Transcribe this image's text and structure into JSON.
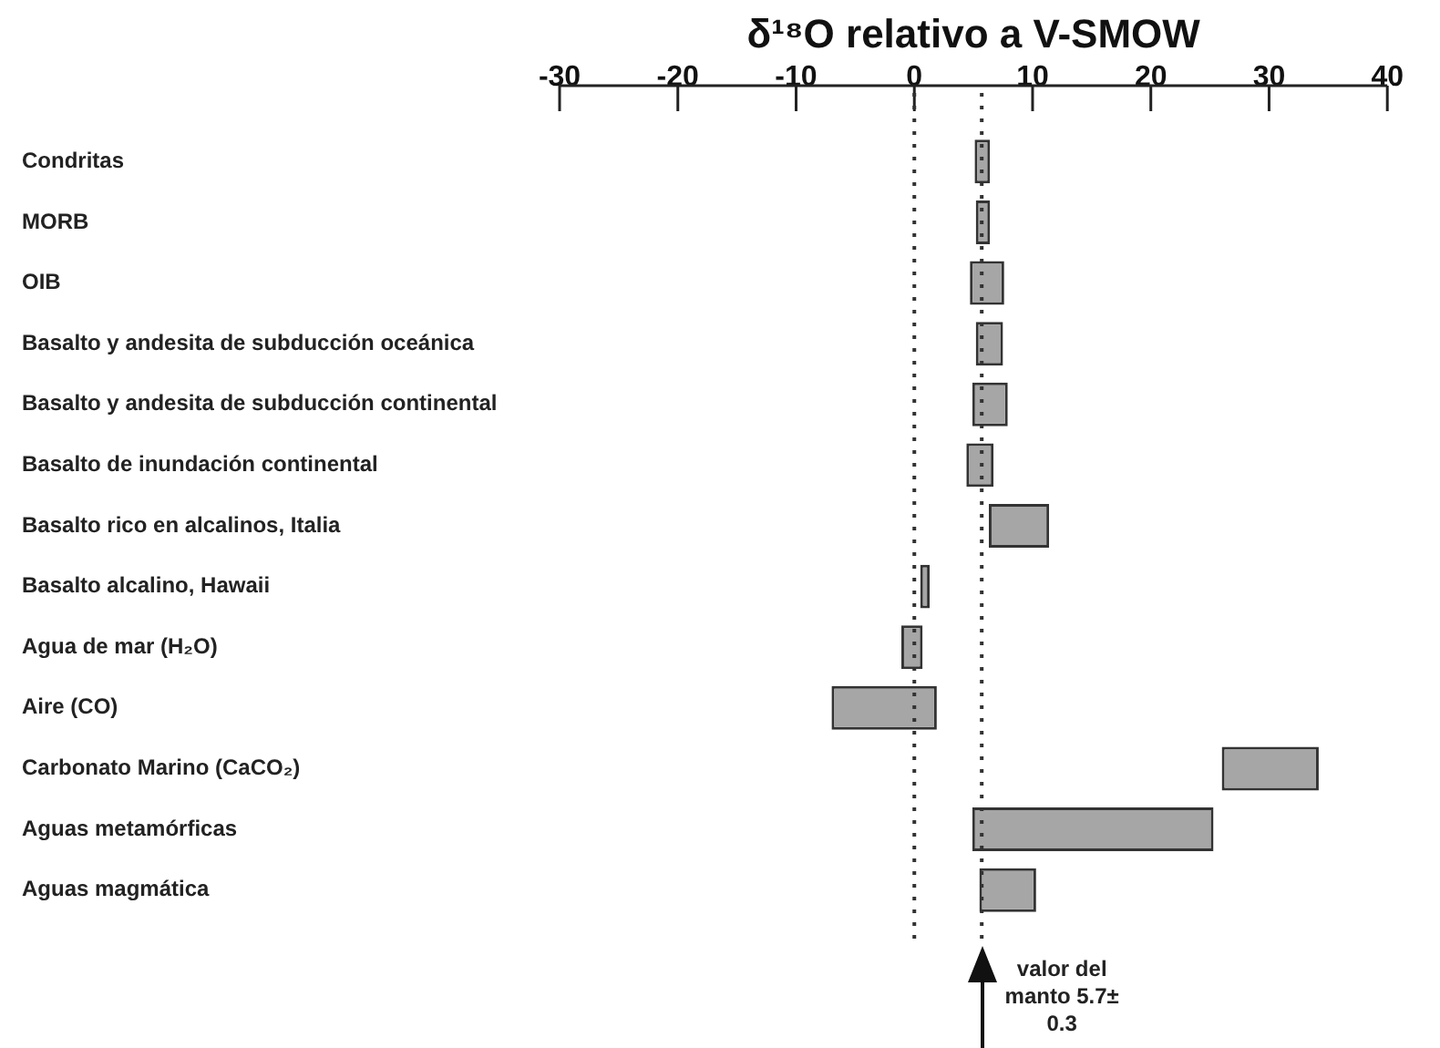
{
  "chart_data": {
    "type": "bar",
    "orientation": "horizontal",
    "title": "δ¹⁸O relativo a V-SMOW",
    "categories": [
      "Condritas",
      "MORB",
      "OIB",
      "Basalto y andesita de subducción oceánica",
      "Basalto y andesita de subducción continental",
      "Basalto de inundación continental",
      "Basalto rico en alcalinos, Italia",
      "Basalto alcalino, Hawaii",
      "Agua de mar (H₂O)",
      "Aire (CO)",
      "Carbonato Marino (CaCO₂)",
      "Aguas metamórficas",
      "Aguas magmática"
    ],
    "base": [
      5.1,
      5.2,
      4.7,
      5.2,
      4.9,
      4.4,
      6.3,
      0.5,
      -1.1,
      -7.0,
      26.0,
      4.9,
      5.5
    ],
    "values": [
      1.3,
      1.2,
      2.9,
      2.3,
      3.0,
      2.3,
      5.1,
      0.8,
      1.8,
      8.9,
      8.2,
      20.4,
      4.8
    ],
    "color": "#a6a6a6",
    "xlim": [
      -30,
      40
    ],
    "xticks": [
      -30,
      -20,
      -10,
      0,
      10,
      20,
      30,
      40
    ],
    "ref_lines": [
      {
        "axis": "x",
        "value": 0,
        "line_style": "dotted"
      },
      {
        "axis": "x",
        "value": 5.7,
        "line_style": "dotted",
        "label": "valor del manto 5.7± 0.3"
      }
    ]
  }
}
